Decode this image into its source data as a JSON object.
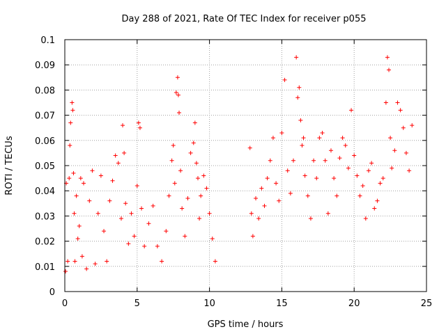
{
  "chart_data": {
    "type": "scatter",
    "title": "Day 288 of 2021, Rate Of TEC Index for receiver p055",
    "xlabel": "GPS time / hours",
    "ylabel": "ROTI / TECUs",
    "xlim": [
      0,
      25
    ],
    "ylim": [
      0,
      0.1
    ],
    "x_ticks": [
      "0",
      "5",
      "10",
      "15",
      "20",
      "25"
    ],
    "y_ticks": [
      "0",
      "0.01",
      "0.02",
      "0.03",
      "0.04",
      "0.05",
      "0.06",
      "0.07",
      "0.08",
      "0.09",
      "0.1"
    ],
    "grid": true,
    "marker": "+",
    "color": "#ff0000",
    "series": [
      {
        "x": [
          0.05,
          0.1,
          0.2,
          0.3,
          0.35,
          0.4,
          0.5,
          0.55,
          0.6,
          0.65,
          0.7,
          0.8,
          0.9,
          1.0,
          1.1,
          1.2,
          1.3,
          1.5,
          1.7,
          1.9,
          2.1,
          2.3,
          2.5,
          2.7,
          2.9,
          3.1,
          3.3,
          3.5,
          3.7,
          3.9,
          4.0,
          4.1,
          4.2,
          4.4,
          4.6,
          4.8,
          5.0,
          5.1,
          5.2,
          5.3,
          5.5,
          5.8,
          6.1,
          6.4,
          6.7,
          7.0,
          7.2,
          7.4,
          7.5,
          7.6,
          7.7,
          7.8,
          7.85,
          7.9,
          8.0,
          8.1,
          8.3,
          8.5,
          8.7,
          8.9,
          9.0,
          9.1,
          9.2,
          9.3,
          9.4,
          9.6,
          9.8,
          10.0,
          10.2,
          10.4,
          12.8,
          12.9,
          13.0,
          13.2,
          13.4,
          13.6,
          13.8,
          14.0,
          14.2,
          14.4,
          14.6,
          14.8,
          15.0,
          15.2,
          15.4,
          15.6,
          15.8,
          16.0,
          16.1,
          16.2,
          16.3,
          16.4,
          16.5,
          16.6,
          16.8,
          17.0,
          17.2,
          17.4,
          17.6,
          17.8,
          18.0,
          18.2,
          18.4,
          18.6,
          18.8,
          19.0,
          19.2,
          19.4,
          19.6,
          19.8,
          20.0,
          20.2,
          20.4,
          20.6,
          20.8,
          21.0,
          21.2,
          21.4,
          21.6,
          21.8,
          22.0,
          22.2,
          22.3,
          22.4,
          22.5,
          22.6,
          22.8,
          23.0,
          23.2,
          23.4,
          23.6,
          23.8,
          24.0
        ],
        "y": [
          0.008,
          0.043,
          0.012,
          0.045,
          0.058,
          0.067,
          0.075,
          0.072,
          0.047,
          0.031,
          0.012,
          0.038,
          0.021,
          0.026,
          0.045,
          0.014,
          0.043,
          0.009,
          0.036,
          0.048,
          0.011,
          0.031,
          0.046,
          0.024,
          0.012,
          0.036,
          0.044,
          0.054,
          0.051,
          0.029,
          0.066,
          0.055,
          0.035,
          0.019,
          0.031,
          0.022,
          0.042,
          0.067,
          0.065,
          0.033,
          0.018,
          0.027,
          0.034,
          0.018,
          0.012,
          0.024,
          0.038,
          0.052,
          0.058,
          0.043,
          0.079,
          0.085,
          0.078,
          0.071,
          0.048,
          0.033,
          0.022,
          0.037,
          0.055,
          0.059,
          0.067,
          0.051,
          0.045,
          0.029,
          0.038,
          0.046,
          0.041,
          0.031,
          0.021,
          0.012,
          0.057,
          0.031,
          0.022,
          0.037,
          0.029,
          0.041,
          0.034,
          0.045,
          0.052,
          0.061,
          0.043,
          0.036,
          0.063,
          0.084,
          0.048,
          0.039,
          0.052,
          0.093,
          0.077,
          0.081,
          0.068,
          0.058,
          0.061,
          0.046,
          0.038,
          0.029,
          0.052,
          0.045,
          0.061,
          0.063,
          0.052,
          0.031,
          0.056,
          0.045,
          0.038,
          0.053,
          0.061,
          0.058,
          0.049,
          0.072,
          0.054,
          0.046,
          0.038,
          0.042,
          0.029,
          0.048,
          0.051,
          0.033,
          0.036,
          0.043,
          0.045,
          0.075,
          0.093,
          0.088,
          0.061,
          0.049,
          0.056,
          0.075,
          0.072,
          0.065,
          0.055,
          0.048,
          0.066
        ]
      }
    ]
  }
}
